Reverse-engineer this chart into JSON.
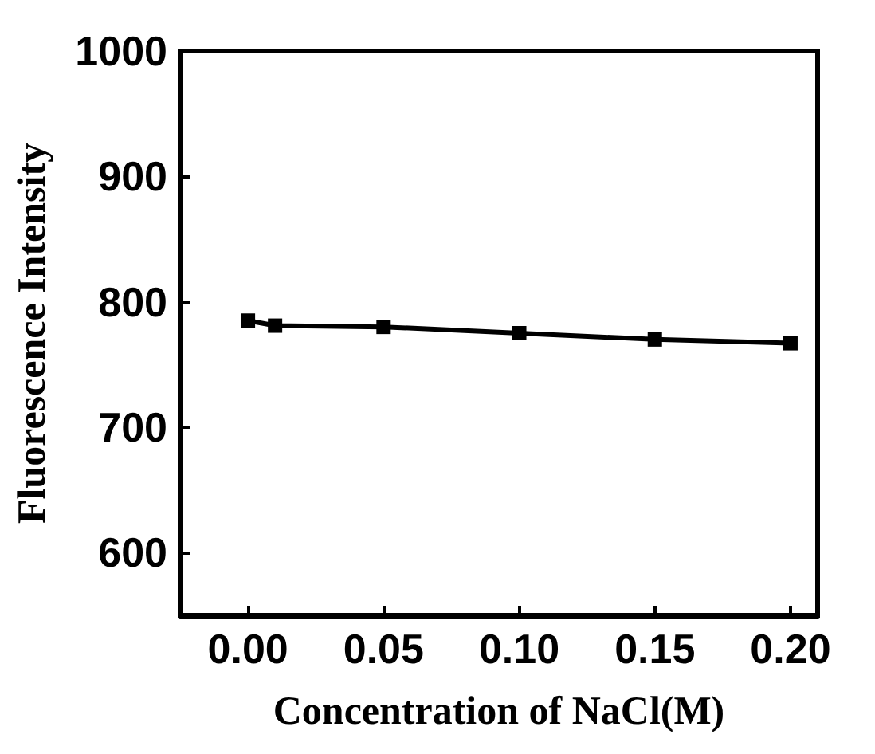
{
  "chart_data": {
    "type": "line",
    "xlabel": "Concentration of NaCl(M)",
    "ylabel": "Fluorescence Intensity",
    "x": [
      0,
      0.01,
      0.05,
      0.1,
      0.15,
      0.2
    ],
    "series": [
      {
        "color": "#000000",
        "values": [
          785,
          781,
          780,
          775,
          770,
          767
        ]
      }
    ],
    "xlim": [
      -0.025,
      0.21
    ],
    "xticks": [
      {
        "value": 0,
        "label": "0.00"
      },
      {
        "value": 0.05,
        "label": "0.05"
      },
      {
        "value": 0.1,
        "label": "0.10"
      },
      {
        "value": 0.15,
        "label": "0.15"
      },
      {
        "value": 0.2,
        "label": "0.20"
      }
    ],
    "ylim": [
      550,
      1000
    ],
    "yticks": [
      600,
      700,
      800,
      900,
      1000
    ],
    "grid": false,
    "marker": "square",
    "line_style": "solid"
  }
}
